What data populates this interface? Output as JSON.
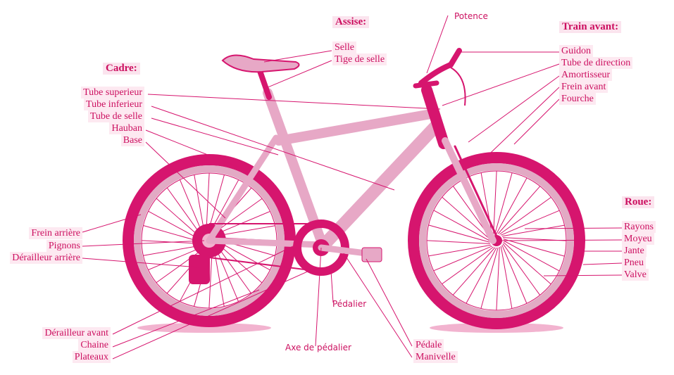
{
  "colors": {
    "accent": "#d6156e",
    "light": "#f2b3cf",
    "label": "#cc1060",
    "label_bg": "#fde9f1"
  },
  "groups": {
    "cadre": {
      "title": "Cadre:",
      "items": [
        "Tube superieur",
        "Tube inferieur",
        "Tube de selle",
        "Hauban",
        "Base"
      ]
    },
    "assise": {
      "title": "Assise:",
      "items": [
        "Selle",
        "Tige de selle"
      ]
    },
    "train_avant": {
      "title": "Train avant:",
      "items": [
        "Guidon",
        "Tube de direction",
        "Amortisseur",
        "Frein avant",
        "Fourche"
      ]
    },
    "roue": {
      "title": "Roue:",
      "items": [
        "Rayons",
        "Moyeu",
        "Jante",
        "Pneu",
        "Valve"
      ]
    },
    "arriere": {
      "items": [
        "Frein arrière",
        "Pignons",
        "Dérailleur arrière"
      ]
    },
    "transmission": {
      "items": [
        "Dérailleur avant",
        "Chaine",
        "Plateaux"
      ]
    },
    "pedales": {
      "items": [
        "Pédale",
        "Manivelle"
      ]
    }
  },
  "standalone": {
    "potence": "Potence",
    "pedalier": "Pédalier",
    "axe": "Axe de pédalier"
  }
}
